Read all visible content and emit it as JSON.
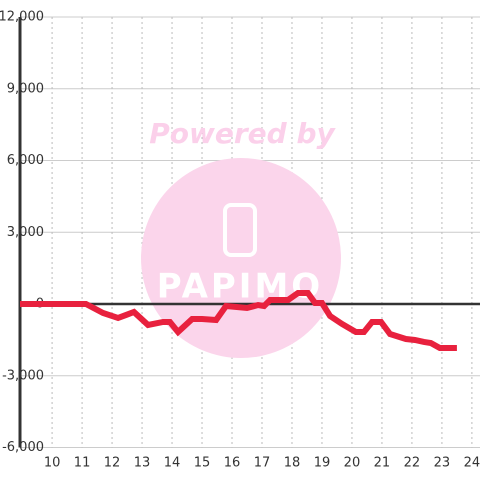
{
  "chart_data": {
    "type": "line",
    "watermark": [
      "Powered by",
      "PAPIMO"
    ],
    "xlim": [
      8.93,
      24.27
    ],
    "xticks": [
      10,
      11,
      12,
      13,
      14,
      15,
      16,
      17,
      18,
      19,
      20,
      21,
      22,
      23,
      24
    ],
    "ylim": [
      -6000,
      12000
    ],
    "yticks": [
      {
        "value": -6000,
        "label": "-6,000"
      },
      {
        "value": -3000,
        "label": "-3,000"
      },
      0,
      {
        "value": 3000,
        "label": "3,000"
      },
      {
        "value": 6000,
        "label": "6,000"
      },
      {
        "value": 9000,
        "label": "9,000"
      },
      {
        "value": 12000,
        "label": "12,000"
      }
    ],
    "grid": true,
    "x": [
      8.93,
      11.13,
      11.7,
      12.2,
      12.73,
      13.2,
      13.7,
      13.93,
      14.2,
      14.67,
      15.0,
      15.47,
      15.8,
      16.5,
      16.87,
      17.07,
      17.27,
      17.87,
      18.2,
      18.53,
      18.77,
      19.0,
      19.27,
      19.67,
      20.13,
      20.4,
      20.67,
      20.97,
      21.27,
      21.8,
      22.1,
      22.4,
      22.63,
      22.93,
      23.5
    ],
    "series": [
      {
        "color": "#e8213e",
        "values": [
          0,
          0,
          -376,
          -585,
          -334,
          -878,
          -752,
          -752,
          -1170,
          -627,
          -627,
          -669,
          -84,
          -167,
          -42,
          -84,
          167,
          167,
          460,
          460,
          42,
          42,
          -502,
          -836,
          -1170,
          -1170,
          -752,
          -752,
          -1254,
          -1463,
          -1505,
          -1588,
          -1630,
          -1839,
          -1839
        ]
      }
    ]
  }
}
